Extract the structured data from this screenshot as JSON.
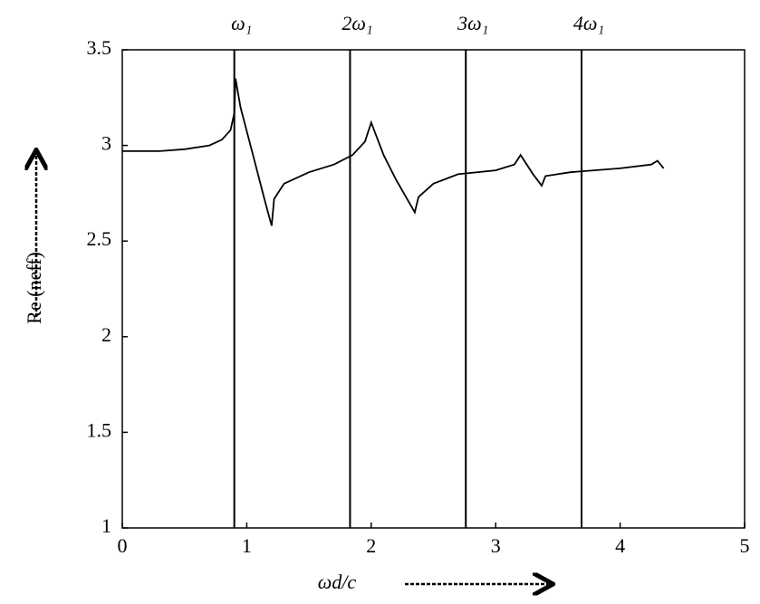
{
  "chart_data": {
    "type": "line",
    "xlabel": "ωd/c",
    "ylabel": "Re (neff)",
    "xlim": [
      0,
      5
    ],
    "ylim": [
      1,
      3.5
    ],
    "xticks": [
      0,
      1,
      2,
      3,
      4,
      5
    ],
    "yticks": [
      1,
      1.5,
      2,
      2.5,
      3,
      3.5
    ],
    "vlines": [
      {
        "x": 0.9,
        "label": "ω₁"
      },
      {
        "x": 1.83,
        "label": "2ω₁"
      },
      {
        "x": 2.76,
        "label": "3ω₁"
      },
      {
        "x": 3.69,
        "label": "4ω₁"
      }
    ],
    "series": [
      {
        "color": "#000000",
        "x": [
          0,
          0.3,
          0.5,
          0.7,
          0.8,
          0.87,
          0.9,
          0.91,
          0.95,
          1.05,
          1.15,
          1.2,
          1.22,
          1.3,
          1.5,
          1.7,
          1.85,
          1.95,
          2.0,
          2.1,
          2.2,
          2.35,
          2.38,
          2.5,
          2.7,
          3.0,
          3.15,
          3.2,
          3.3,
          3.37,
          3.4,
          3.6,
          4.0,
          4.25,
          4.3,
          4.35
        ],
        "values": [
          2.97,
          2.97,
          2.98,
          3.0,
          3.03,
          3.08,
          3.17,
          3.35,
          3.2,
          2.95,
          2.7,
          2.58,
          2.72,
          2.8,
          2.86,
          2.9,
          2.95,
          3.02,
          3.12,
          2.95,
          2.82,
          2.65,
          2.73,
          2.8,
          2.85,
          2.87,
          2.9,
          2.95,
          2.85,
          2.79,
          2.84,
          2.86,
          2.88,
          2.9,
          2.92,
          2.88
        ]
      }
    ]
  }
}
